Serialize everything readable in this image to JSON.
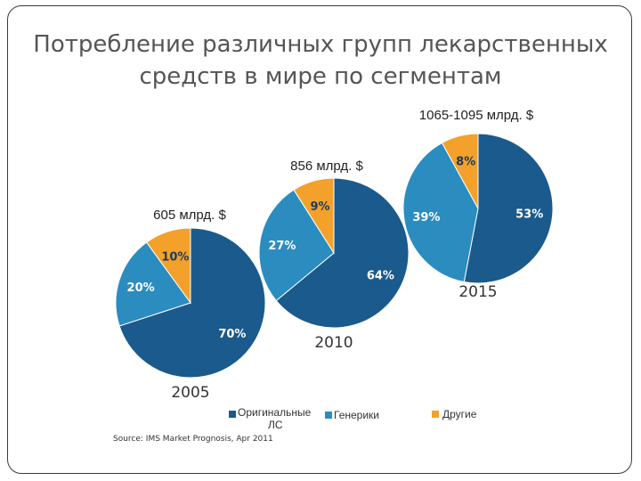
{
  "page": {
    "title_line1": "Потребление различных групп лекарственных",
    "title_line2": "средств в мире по сегментам"
  },
  "colors": {
    "original": "#1a5a8c",
    "generic": "#2b8cc0",
    "other": "#f3a12b"
  },
  "legend": {
    "original": "Оригинальные ЛС",
    "original_line1": "Оригинальные",
    "original_line2": "ЛС",
    "generic": "Генерики",
    "other": "Другие"
  },
  "source": "Source: IMS Market Prognosis, Apr 2011",
  "chart_data": {
    "type": "pie",
    "categories": [
      "Оригинальные ЛС",
      "Генерики",
      "Другие"
    ],
    "pies": [
      {
        "year": "2005",
        "total": "605 млрд. $",
        "values": [
          70,
          20,
          10
        ],
        "labels": [
          "70%",
          "20%",
          "10%"
        ]
      },
      {
        "year": "2010",
        "total": "856 млрд. $",
        "values": [
          64,
          27,
          9
        ],
        "labels": [
          "64%",
          "27%",
          "9%"
        ]
      },
      {
        "year": "2015",
        "total": "1065-1095 млрд. $",
        "values": [
          53,
          39,
          8
        ],
        "labels": [
          "53%",
          "39%",
          "8%"
        ]
      }
    ]
  }
}
